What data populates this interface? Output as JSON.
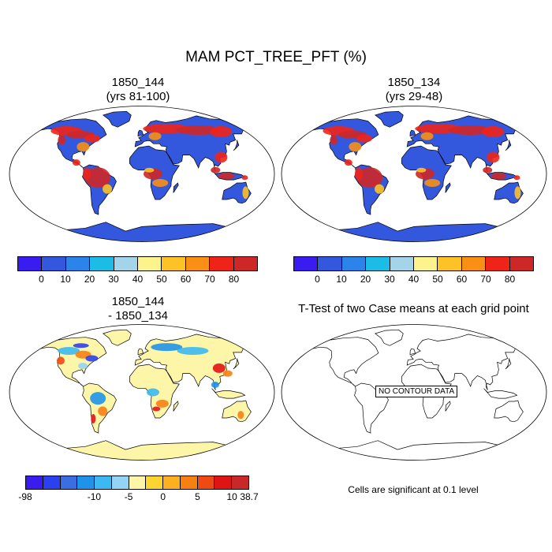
{
  "title": "MAM PCT_TREE_PFT (%)",
  "panels": [
    {
      "title_line1": "1850_144",
      "title_line2": "(yrs 81-100)"
    },
    {
      "title_line1": "1850_134",
      "title_line2": "(yrs 29-48)"
    },
    {
      "title_line1": "1850_144",
      "title_line2": "- 1850_134"
    },
    {
      "title_line1": "T-Test of two Case means at each grid point",
      "title_line2": ""
    }
  ],
  "colorbar_top": {
    "colors": [
      "#3a1cf0",
      "#3358dd",
      "#2b84ea",
      "#1bbde6",
      "#a4d4ea",
      "#fdf38c",
      "#fdc226",
      "#f79014",
      "#ef2418",
      "#ce2727"
    ],
    "labels": [
      "0",
      "10",
      "20",
      "30",
      "40",
      "50",
      "60",
      "70",
      "80"
    ]
  },
  "colorbar_diff": {
    "colors": [
      "#3a1cf0",
      "#2b40ee",
      "#3b6ee0",
      "#1f93ea",
      "#3bb9f0",
      "#93d4f4",
      "#fdf6a8",
      "#fdd530",
      "#fdb020",
      "#f78012",
      "#ef4a14",
      "#e01414",
      "#c82828"
    ],
    "labels": [
      "-98",
      "-10",
      "-5",
      "0",
      "5",
      "10",
      "38.7"
    ]
  },
  "no_data_label": "NO CONTOUR DATA",
  "significance_note": "Cells are significant at 0.1 level"
}
